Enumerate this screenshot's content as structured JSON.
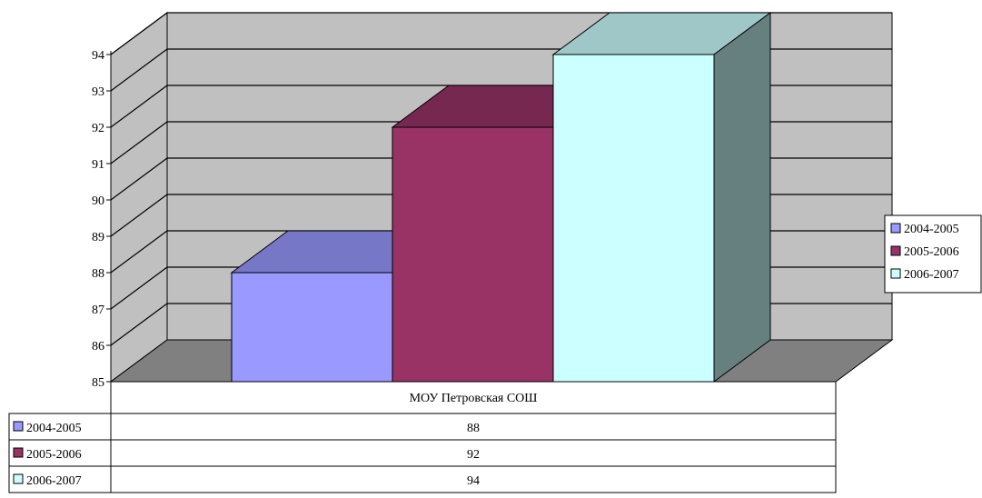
{
  "chart_data": {
    "type": "bar",
    "categories": [
      "МОУ Петровская СОШ"
    ],
    "series": [
      {
        "name": "2004-2005",
        "values": [
          88
        ],
        "color": "#9999FF"
      },
      {
        "name": "2005-2006",
        "values": [
          92
        ],
        "color": "#993366"
      },
      {
        "name": "2006-2007",
        "values": [
          94
        ],
        "color": "#CCFFFF"
      }
    ],
    "ylim": [
      85,
      94
    ],
    "yticks": [
      "85",
      "86",
      "87",
      "88",
      "89",
      "90",
      "91",
      "92",
      "93",
      "94"
    ],
    "grid": true,
    "legend_position": "right",
    "data_table": true
  }
}
